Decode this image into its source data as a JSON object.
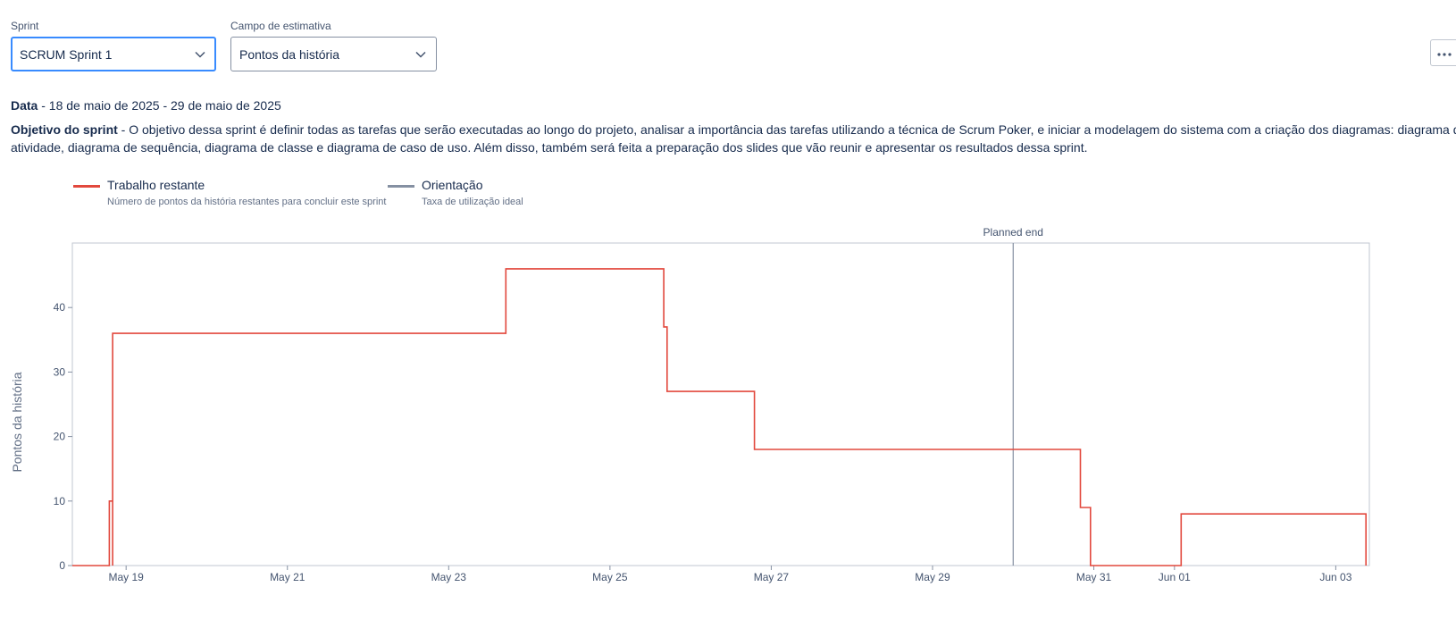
{
  "controls": {
    "sprint": {
      "label": "Sprint",
      "value": "SCRUM Sprint 1"
    },
    "estimate": {
      "label": "Campo de estimativa",
      "value": "Pontos da história"
    },
    "more_button": "more-horizontal-icon"
  },
  "info": {
    "date_label": "Data",
    "date_value": " - 18 de maio de 2025 - 29 de maio de 2025",
    "goal_label": "Objetivo do sprint",
    "goal_text_1": " - O objetivo dessa sprint é definir todas as tarefas que serão executadas ao longo do projeto, analisar a importância das tarefas utilizando a técnica de Scrum Poker, e iniciar a modelagem do sistema com a criação dos diagramas: diagrama de",
    "goal_text_2": "atividade, diagrama de sequência, diagrama de classe e diagrama de caso de uso. Além disso, também será feita a preparação dos slides que vão reunir e apresentar os resultados dessa sprint."
  },
  "legend": [
    {
      "title": "Trabalho restante",
      "description": "Número de pontos da história restantes para concluir este sprint",
      "color": "#e2483d"
    },
    {
      "title": "Orientação",
      "description": "Taxa de utilização ideal",
      "color": "#8590a2"
    }
  ],
  "chart_data": {
    "type": "line",
    "step": true,
    "ylabel": "Pontos da história",
    "ylim": [
      0,
      50
    ],
    "yticks": [
      0,
      10,
      20,
      30,
      40
    ],
    "x_range": [
      "2025-05-18 08:00",
      "2025-06-03 10:00"
    ],
    "x_ticks": [
      {
        "date": "2025-05-19 00:00",
        "label": "May 19"
      },
      {
        "date": "2025-05-21 00:00",
        "label": "May 21"
      },
      {
        "date": "2025-05-23 00:00",
        "label": "May 23"
      },
      {
        "date": "2025-05-25 00:00",
        "label": "May 25"
      },
      {
        "date": "2025-05-27 00:00",
        "label": "May 27"
      },
      {
        "date": "2025-05-29 00:00",
        "label": "May 29"
      },
      {
        "date": "2025-05-31 00:00",
        "label": "May 31"
      },
      {
        "date": "2025-06-01 00:00",
        "label": "Jun 01"
      },
      {
        "date": "2025-06-03 00:00",
        "label": "Jun 03"
      }
    ],
    "planned_end": {
      "date": "2025-05-30 00:00",
      "label": "Planned end"
    },
    "series": [
      {
        "name": "Trabalho restante",
        "color": "#e2483d",
        "points": [
          [
            "2025-05-18 08:00",
            0
          ],
          [
            "2025-05-18 19:00",
            0
          ],
          [
            "2025-05-18 19:00",
            10
          ],
          [
            "2025-05-18 20:00",
            10
          ],
          [
            "2025-05-18 20:00",
            0
          ],
          [
            "2025-05-18 20:00",
            36
          ],
          [
            "2025-05-23 17:00",
            36
          ],
          [
            "2025-05-23 17:00",
            46
          ],
          [
            "2025-05-25 16:00",
            46
          ],
          [
            "2025-05-25 16:00",
            37
          ],
          [
            "2025-05-25 17:00",
            37
          ],
          [
            "2025-05-25 17:00",
            27
          ],
          [
            "2025-05-26 19:00",
            27
          ],
          [
            "2025-05-26 19:00",
            18
          ],
          [
            "2025-05-30 20:00",
            18
          ],
          [
            "2025-05-30 20:00",
            9
          ],
          [
            "2025-05-30 23:00",
            9
          ],
          [
            "2025-05-30 23:00",
            0
          ],
          [
            "2025-06-01 02:00",
            0
          ],
          [
            "2025-06-01 02:00",
            8
          ],
          [
            "2025-06-03 09:00",
            8
          ],
          [
            "2025-06-03 09:00",
            0
          ]
        ]
      }
    ]
  }
}
